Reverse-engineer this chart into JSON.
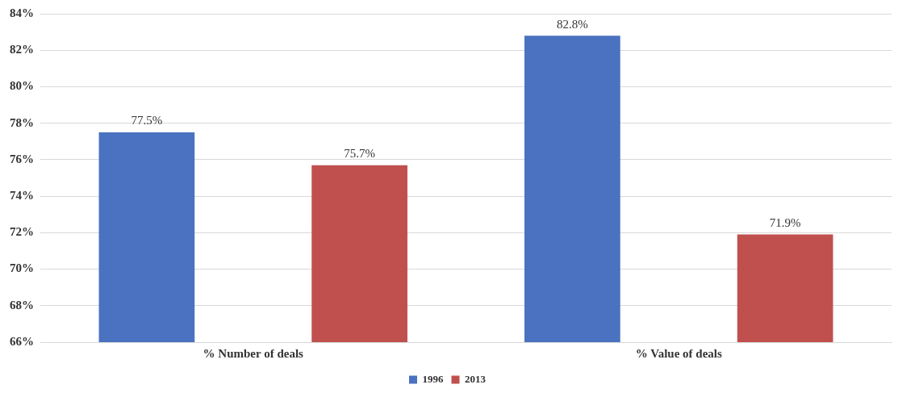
{
  "chart_data": {
    "type": "bar",
    "categories": [
      "% Number of deals",
      "% Value of deals"
    ],
    "series": [
      {
        "name": "1996",
        "color": "#4a72c0",
        "values": [
          77.5,
          82.8
        ],
        "value_labels": [
          "77.5%",
          "82.8%"
        ]
      },
      {
        "name": "2013",
        "color": "#c0504d",
        "values": [
          75.7,
          71.9
        ],
        "value_labels": [
          "75.7%",
          "71.9%"
        ]
      }
    ],
    "ylim": [
      66,
      84
    ],
    "yticks": [
      {
        "value": 66,
        "label": "66%"
      },
      {
        "value": 68,
        "label": "68%"
      },
      {
        "value": 70,
        "label": "70%"
      },
      {
        "value": 72,
        "label": "72%"
      },
      {
        "value": 74,
        "label": "74%"
      },
      {
        "value": 76,
        "label": "76%"
      },
      {
        "value": 78,
        "label": "78%"
      },
      {
        "value": 80,
        "label": "80%"
      },
      {
        "value": 82,
        "label": "82%"
      },
      {
        "value": 84,
        "label": "84%"
      }
    ],
    "grid": "y",
    "legend": "bottom"
  }
}
